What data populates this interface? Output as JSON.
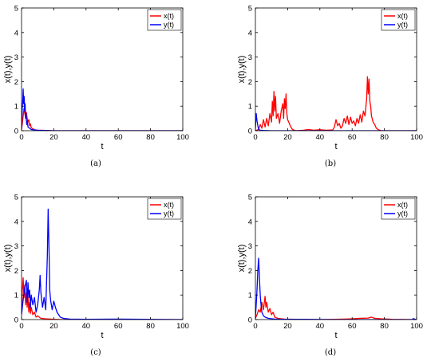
{
  "chart_data": [
    {
      "type": "line",
      "caption": "(a)",
      "xlabel": "t",
      "ylabel": "x(t),y(t)",
      "xlim": [
        0,
        100
      ],
      "ylim": [
        0,
        5
      ],
      "xticks": [
        "0",
        "20",
        "40",
        "60",
        "80",
        "100"
      ],
      "yticks": [
        "0",
        "1",
        "2",
        "3",
        "4",
        "5"
      ],
      "legend_position": "top-right",
      "grid": false,
      "series": [
        {
          "name": "x(t)",
          "color": "#ff0000",
          "points": [
            [
              0,
              0.05
            ],
            [
              0.5,
              0.3
            ],
            [
              1,
              0.6
            ],
            [
              1.5,
              0.9
            ],
            [
              2,
              0.7
            ],
            [
              2.5,
              0.55
            ],
            [
              3,
              0.75
            ],
            [
              3.5,
              0.5
            ],
            [
              4,
              0.35
            ],
            [
              4.5,
              0.45
            ],
            [
              5,
              0.2
            ],
            [
              5.5,
              0.28
            ],
            [
              6,
              0.12
            ],
            [
              7,
              0.08
            ],
            [
              8,
              0.04
            ],
            [
              10,
              0.02
            ],
            [
              15,
              0.01
            ],
            [
              20,
              0.0
            ],
            [
              100,
              0.0
            ]
          ]
        },
        {
          "name": "y(t)",
          "color": "#0000ff",
          "points": [
            [
              0,
              0.1
            ],
            [
              0.4,
              0.9
            ],
            [
              0.8,
              1.3
            ],
            [
              1.0,
              1.7
            ],
            [
              1.3,
              1.1
            ],
            [
              1.6,
              1.4
            ],
            [
              1.9,
              0.8
            ],
            [
              2.2,
              1.1
            ],
            [
              2.5,
              0.5
            ],
            [
              2.8,
              0.7
            ],
            [
              3.2,
              0.25
            ],
            [
              3.6,
              0.4
            ],
            [
              4,
              0.15
            ],
            [
              5,
              0.1
            ],
            [
              6,
              0.05
            ],
            [
              8,
              0.03
            ],
            [
              10,
              0.02
            ],
            [
              14,
              0.01
            ],
            [
              20,
              0.0
            ],
            [
              100,
              0.0
            ]
          ]
        }
      ]
    },
    {
      "type": "line",
      "caption": "(b)",
      "xlabel": "t",
      "ylabel": "x(t),y(t)",
      "xlim": [
        0,
        100
      ],
      "ylim": [
        0,
        5
      ],
      "xticks": [
        "0",
        "20",
        "40",
        "60",
        "80",
        "100"
      ],
      "yticks": [
        "0",
        "1",
        "2",
        "3",
        "4",
        "5"
      ],
      "legend_position": "top-right",
      "grid": false,
      "series": [
        {
          "name": "x(t)",
          "color": "#ff0000",
          "points": [
            [
              0,
              0.0
            ],
            [
              2,
              0.05
            ],
            [
              3,
              0.25
            ],
            [
              4,
              0.1
            ],
            [
              5,
              0.45
            ],
            [
              6,
              0.15
            ],
            [
              7,
              0.5
            ],
            [
              8,
              0.2
            ],
            [
              9,
              0.7
            ],
            [
              10,
              0.35
            ],
            [
              10.5,
              1.2
            ],
            [
              11,
              0.6
            ],
            [
              11.5,
              1.6
            ],
            [
              12,
              0.8
            ],
            [
              12.5,
              1.4
            ],
            [
              13,
              0.5
            ],
            [
              14,
              0.7
            ],
            [
              15,
              0.3
            ],
            [
              16,
              0.8
            ],
            [
              17,
              1.1
            ],
            [
              17.5,
              0.5
            ],
            [
              18,
              1.3
            ],
            [
              18.5,
              0.9
            ],
            [
              19,
              1.5
            ],
            [
              19.5,
              0.7
            ],
            [
              20,
              0.45
            ],
            [
              21,
              0.3
            ],
            [
              22,
              0.15
            ],
            [
              23,
              0.05
            ],
            [
              25,
              0.0
            ],
            [
              30,
              0.02
            ],
            [
              33,
              0.05
            ],
            [
              36,
              0.02
            ],
            [
              40,
              0.04
            ],
            [
              44,
              0.02
            ],
            [
              48,
              0.03
            ],
            [
              49,
              0.15
            ],
            [
              50,
              0.45
            ],
            [
              51,
              0.2
            ],
            [
              52,
              0.3
            ],
            [
              53,
              0.1
            ],
            [
              54,
              0.2
            ],
            [
              55,
              0.5
            ],
            [
              56,
              0.3
            ],
            [
              57,
              0.6
            ],
            [
              58,
              0.25
            ],
            [
              59,
              0.55
            ],
            [
              60,
              0.3
            ],
            [
              61,
              0.4
            ],
            [
              62,
              0.2
            ],
            [
              63,
              0.5
            ],
            [
              64,
              0.3
            ],
            [
              65,
              0.65
            ],
            [
              66,
              0.35
            ],
            [
              67,
              0.8
            ],
            [
              68,
              0.6
            ],
            [
              69,
              1.3
            ],
            [
              69.5,
              2.2
            ],
            [
              70,
              1.5
            ],
            [
              70.5,
              2.1
            ],
            [
              71,
              1.2
            ],
            [
              71.5,
              1.0
            ],
            [
              72,
              0.6
            ],
            [
              73,
              0.35
            ],
            [
              74,
              0.25
            ],
            [
              75,
              0.1
            ],
            [
              76,
              0.05
            ],
            [
              78,
              0.0
            ],
            [
              100,
              0.0
            ]
          ]
        },
        {
          "name": "y(t)",
          "color": "#0000ff",
          "points": [
            [
              0,
              0.1
            ],
            [
              0.5,
              0.7
            ],
            [
              1,
              0.4
            ],
            [
              1.5,
              0.2
            ],
            [
              2,
              0.05
            ],
            [
              3,
              0.02
            ],
            [
              5,
              0.01
            ],
            [
              10,
              0.0
            ],
            [
              100,
              0.0
            ]
          ]
        }
      ]
    },
    {
      "type": "line",
      "caption": "(c)",
      "xlabel": "t",
      "ylabel": "x(t),y(t)",
      "xlim": [
        0,
        100
      ],
      "ylim": [
        0,
        5
      ],
      "xticks": [
        "0",
        "20",
        "40",
        "60",
        "80",
        "100"
      ],
      "yticks": [
        "0",
        "1",
        "2",
        "3",
        "4",
        "5"
      ],
      "legend_position": "top-right",
      "grid": false,
      "series": [
        {
          "name": "x(t)",
          "color": "#ff0000",
          "points": [
            [
              0,
              0.3
            ],
            [
              0.5,
              1.2
            ],
            [
              1,
              1.7
            ],
            [
              1.5,
              0.9
            ],
            [
              2,
              1.4
            ],
            [
              2.5,
              0.6
            ],
            [
              3,
              1.1
            ],
            [
              3.5,
              0.5
            ],
            [
              4,
              0.9
            ],
            [
              4.5,
              0.3
            ],
            [
              5,
              0.7
            ],
            [
              5.5,
              0.25
            ],
            [
              6,
              0.5
            ],
            [
              7,
              0.2
            ],
            [
              8,
              0.3
            ],
            [
              9,
              0.1
            ],
            [
              10,
              0.15
            ],
            [
              12,
              0.05
            ],
            [
              15,
              0.03
            ],
            [
              20,
              0.01
            ],
            [
              25,
              0.0
            ],
            [
              100,
              0.0
            ]
          ]
        },
        {
          "name": "y(t)",
          "color": "#0000ff",
          "points": [
            [
              0,
              0.2
            ],
            [
              1,
              0.8
            ],
            [
              2,
              1.3
            ],
            [
              3,
              1.6
            ],
            [
              3.5,
              0.7
            ],
            [
              4,
              1.5
            ],
            [
              4.5,
              0.9
            ],
            [
              5,
              1.2
            ],
            [
              5.5,
              0.5
            ],
            [
              6,
              1.0
            ],
            [
              7,
              0.6
            ],
            [
              8,
              0.9
            ],
            [
              9,
              0.3
            ],
            [
              10,
              0.6
            ],
            [
              11,
              1.2
            ],
            [
              11.5,
              1.8
            ],
            [
              12,
              1.1
            ],
            [
              13,
              0.5
            ],
            [
              14,
              0.9
            ],
            [
              15,
              0.4
            ],
            [
              15.5,
              1.5
            ],
            [
              16,
              2.6
            ],
            [
              16.5,
              4.5
            ],
            [
              17,
              3.0
            ],
            [
              17.5,
              1.2
            ],
            [
              18,
              0.8
            ],
            [
              19,
              0.4
            ],
            [
              20,
              0.75
            ],
            [
              21,
              0.5
            ],
            [
              22,
              0.3
            ],
            [
              23,
              0.2
            ],
            [
              24,
              0.1
            ],
            [
              26,
              0.05
            ],
            [
              30,
              0.02
            ],
            [
              40,
              0.01
            ],
            [
              60,
              0.02
            ],
            [
              100,
              0.0
            ]
          ]
        }
      ]
    },
    {
      "type": "line",
      "caption": "(d)",
      "xlabel": "t",
      "ylabel": "x(t),y(t)",
      "xlim": [
        0,
        100
      ],
      "ylim": [
        0,
        5
      ],
      "xticks": [
        "0",
        "20",
        "40",
        "60",
        "80",
        "100"
      ],
      "yticks": [
        "0",
        "1",
        "2",
        "3",
        "4",
        "5"
      ],
      "legend_position": "top-right",
      "grid": false,
      "series": [
        {
          "name": "x(t)",
          "color": "#ff0000",
          "points": [
            [
              0,
              0.05
            ],
            [
              1,
              0.2
            ],
            [
              2,
              0.4
            ],
            [
              3,
              0.3
            ],
            [
              4,
              0.7
            ],
            [
              5,
              0.4
            ],
            [
              6,
              0.95
            ],
            [
              6.5,
              0.5
            ],
            [
              7,
              0.7
            ],
            [
              8,
              0.3
            ],
            [
              9,
              0.45
            ],
            [
              10,
              0.2
            ],
            [
              11,
              0.3
            ],
            [
              12,
              0.1
            ],
            [
              14,
              0.05
            ],
            [
              18,
              0.02
            ],
            [
              25,
              0.01
            ],
            [
              40,
              0.0
            ],
            [
              55,
              0.02
            ],
            [
              60,
              0.03
            ],
            [
              65,
              0.05
            ],
            [
              70,
              0.06
            ],
            [
              72,
              0.1
            ],
            [
              74,
              0.05
            ],
            [
              78,
              0.03
            ],
            [
              85,
              0.01
            ],
            [
              100,
              0.0
            ]
          ]
        },
        {
          "name": "y(t)",
          "color": "#0000ff",
          "points": [
            [
              0,
              0.1
            ],
            [
              0.5,
              0.6
            ],
            [
              1,
              1.2
            ],
            [
              1.5,
              2.0
            ],
            [
              2,
              2.5
            ],
            [
              2.5,
              1.7
            ],
            [
              3,
              1.0
            ],
            [
              3.5,
              0.6
            ],
            [
              4,
              0.3
            ],
            [
              5,
              0.15
            ],
            [
              6,
              0.1
            ],
            [
              8,
              0.05
            ],
            [
              12,
              0.02
            ],
            [
              18,
              0.01
            ],
            [
              30,
              0.01
            ],
            [
              50,
              0.0
            ],
            [
              97,
              0.0
            ],
            [
              98,
              0.04
            ],
            [
              99,
              0.01
            ],
            [
              100,
              0.0
            ]
          ]
        }
      ]
    }
  ]
}
